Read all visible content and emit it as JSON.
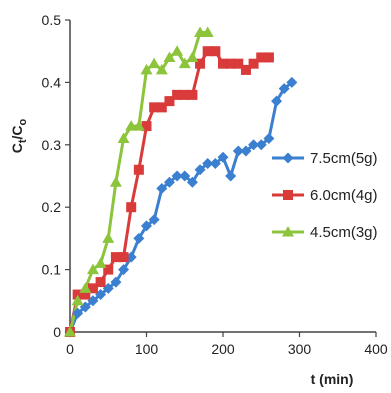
{
  "chart_data": {
    "type": "line",
    "xlabel": "t (min)",
    "ylabel_main": "C",
    "ylabel_sub1": "t",
    "ylabel_mid": "/C",
    "ylabel_sub2": "o",
    "xlim": [
      0,
      400
    ],
    "ylim": [
      0,
      0.5
    ],
    "xticks": [
      0,
      100,
      200,
      300,
      400
    ],
    "yticks": [
      0,
      0.1,
      0.2,
      0.3,
      0.4,
      0.5
    ],
    "xtick_labels": [
      "0",
      "100",
      "200",
      "300",
      "400"
    ],
    "ytick_labels": [
      "0",
      "0.1",
      "0.2",
      "0.3",
      "0.4",
      "0.5"
    ],
    "grid": false,
    "legend_position": "right",
    "series": [
      {
        "name": "7.5cm(5g)",
        "color": "#3a7fd0",
        "marker": "diamond",
        "x": [
          0,
          10,
          20,
          30,
          40,
          50,
          60,
          70,
          80,
          90,
          100,
          110,
          120,
          130,
          140,
          150,
          160,
          170,
          180,
          190,
          200,
          210,
          220,
          230,
          240,
          250,
          260,
          270,
          280,
          290
        ],
        "y": [
          0,
          0.03,
          0.04,
          0.05,
          0.06,
          0.07,
          0.08,
          0.1,
          0.12,
          0.15,
          0.17,
          0.18,
          0.23,
          0.24,
          0.25,
          0.25,
          0.24,
          0.26,
          0.27,
          0.27,
          0.28,
          0.25,
          0.29,
          0.29,
          0.3,
          0.3,
          0.31,
          0.37,
          0.39,
          0.4
        ]
      },
      {
        "name": "6.0cm(4g)",
        "color": "#d93a3a",
        "marker": "square",
        "x": [
          0,
          10,
          20,
          30,
          40,
          50,
          60,
          70,
          80,
          90,
          100,
          110,
          120,
          130,
          140,
          150,
          160,
          170,
          180,
          190,
          200,
          210,
          220,
          230,
          240,
          250,
          260
        ],
        "y": [
          0,
          0.06,
          0.06,
          0.07,
          0.08,
          0.1,
          0.12,
          0.12,
          0.2,
          0.26,
          0.33,
          0.36,
          0.36,
          0.37,
          0.38,
          0.38,
          0.38,
          0.43,
          0.45,
          0.45,
          0.43,
          0.43,
          0.43,
          0.42,
          0.43,
          0.44,
          0.44
        ]
      },
      {
        "name": "4.5cm(3g)",
        "color": "#8cc43c",
        "marker": "triangle",
        "x": [
          0,
          10,
          20,
          30,
          40,
          50,
          60,
          70,
          80,
          90,
          100,
          110,
          120,
          130,
          140,
          150,
          160,
          170,
          180
        ],
        "y": [
          0,
          0.05,
          0.07,
          0.1,
          0.11,
          0.15,
          0.24,
          0.31,
          0.33,
          0.33,
          0.42,
          0.43,
          0.42,
          0.44,
          0.45,
          0.43,
          0.44,
          0.48,
          0.48
        ]
      }
    ]
  }
}
